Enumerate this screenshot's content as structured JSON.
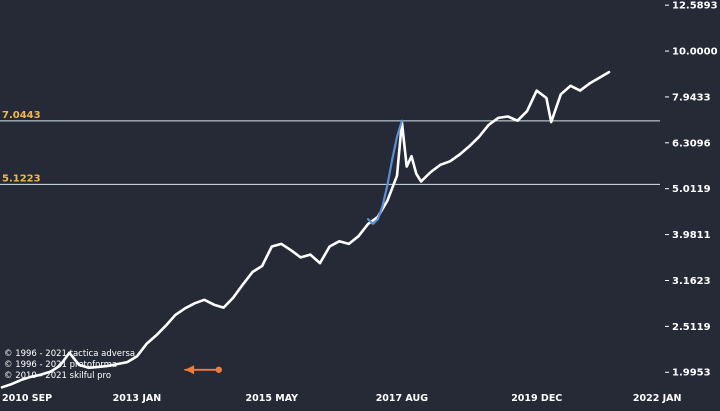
{
  "chart_data": {
    "type": "line",
    "title": "",
    "xlabel": "",
    "ylabel": "",
    "y_scale": "log",
    "ylim": [
      1.9,
      12.6
    ],
    "xlim": [
      "2010-09",
      "2022-02"
    ],
    "y_ticks": [
      "12.5893",
      "10.0000",
      "7.9433",
      "6.3096",
      "5.0119",
      "3.9811",
      "3.1623",
      "2.5119",
      "1.9953"
    ],
    "x_ticks": [
      {
        "date": "2010-09",
        "label": "2010 SEP"
      },
      {
        "date": "2013-01",
        "label": "2013 JAN"
      },
      {
        "date": "2015-05",
        "label": "2015 MAY"
      },
      {
        "date": "2017-08",
        "label": "2017 AUG"
      },
      {
        "date": "2019-12",
        "label": "2019 DEC"
      },
      {
        "date": "2022-01",
        "label": "2022 JAN"
      }
    ],
    "levels": [
      {
        "value": 7.0443,
        "label": "7.0443"
      },
      {
        "value": 5.1223,
        "label": "5.1223"
      }
    ],
    "series": [
      {
        "color": "#ffffff",
        "x": [
          "2010-09",
          "2010-11",
          "2011-01",
          "2011-03",
          "2011-05",
          "2011-07",
          "2011-09",
          "2011-11",
          "2012-01",
          "2012-03",
          "2012-05",
          "2012-07",
          "2012-09",
          "2012-11",
          "2013-01",
          "2013-03",
          "2013-05",
          "2013-07",
          "2013-09",
          "2013-11",
          "2014-01",
          "2014-03",
          "2014-05",
          "2014-07",
          "2014-09",
          "2014-11",
          "2015-01",
          "2015-03",
          "2015-05",
          "2015-07",
          "2015-09",
          "2015-11",
          "2016-01",
          "2016-03",
          "2016-05",
          "2016-07",
          "2016-09",
          "2016-11",
          "2017-01",
          "2017-03",
          "2017-05",
          "2017-07",
          "2017-08",
          "2017-09",
          "2017-10",
          "2017-11",
          "2017-12",
          "2018-02",
          "2018-04",
          "2018-06",
          "2018-08",
          "2018-10",
          "2018-12",
          "2019-02",
          "2019-04",
          "2019-06",
          "2019-08",
          "2019-10",
          "2019-12",
          "2020-02",
          "2020-03",
          "2020-05",
          "2020-07",
          "2020-09",
          "2020-11",
          "2021-01",
          "2021-03"
        ],
        "y": [
          1.85,
          1.88,
          1.92,
          1.95,
          1.97,
          2.0,
          2.06,
          2.2,
          2.07,
          2.04,
          2.05,
          2.06,
          2.08,
          2.1,
          2.16,
          2.3,
          2.4,
          2.52,
          2.66,
          2.75,
          2.82,
          2.87,
          2.8,
          2.76,
          2.9,
          3.1,
          3.3,
          3.4,
          3.75,
          3.8,
          3.68,
          3.55,
          3.6,
          3.45,
          3.75,
          3.85,
          3.8,
          3.95,
          4.2,
          4.35,
          4.72,
          5.35,
          7.0,
          5.6,
          5.9,
          5.4,
          5.2,
          5.45,
          5.65,
          5.75,
          5.95,
          6.2,
          6.5,
          6.9,
          7.15,
          7.2,
          7.05,
          7.4,
          8.2,
          7.9,
          7.0,
          8.05,
          8.4,
          8.2,
          8.5,
          8.75,
          9.0
        ]
      },
      {
        "color": "#5a8fd8",
        "x": [
          "2017-01",
          "2017-02",
          "2017-03",
          "2017-04",
          "2017-05",
          "2017-06",
          "2017-07",
          "2017-08"
        ],
        "y": [
          4.3,
          4.2,
          4.3,
          4.6,
          5.1,
          5.8,
          6.5,
          7.05
        ]
      },
      {
        "color": "#f07b3f",
        "x": [
          "2014-06",
          "2013-11"
        ],
        "y": [
          2.02,
          2.02
        ]
      }
    ]
  },
  "credits": [
    "© 1996 - 2021 tactica adversa",
    "© 1996 - 2021 protoforma",
    "© 2010 - 2021 skilful pro"
  ]
}
